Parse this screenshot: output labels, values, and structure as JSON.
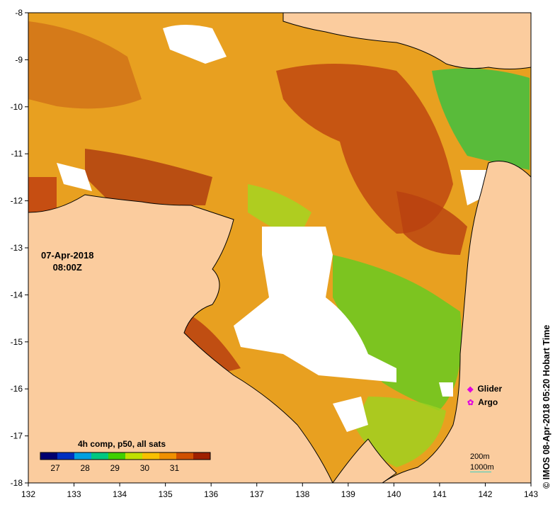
{
  "map": {
    "date": "07-Apr-2018",
    "time": "08:00Z",
    "lon_ticks": [
      "132",
      "133",
      "134",
      "135",
      "136",
      "137",
      "138",
      "139",
      "140",
      "141",
      "142",
      "143"
    ],
    "lat_ticks": [
      "-8",
      "-9",
      "-10",
      "-11",
      "-12",
      "-13",
      "-14",
      "-15",
      "-16",
      "-17",
      "-18"
    ],
    "colorbar": {
      "title": "4h comp, p50, all sats",
      "ticks": [
        "27",
        "28",
        "29",
        "30",
        "31"
      ],
      "colors": [
        "#000070",
        "#0030c0",
        "#00a0e0",
        "#00c880",
        "#40d000",
        "#c0e000",
        "#f8c000",
        "#f09000",
        "#d05000",
        "#a02000"
      ]
    },
    "legend": {
      "glider": "Glider",
      "argo": "Argo",
      "depth_200": "200m",
      "depth_1000": "1000m"
    },
    "credit": "© IMOS 08-Apr-2018 05:20 Hobart Time",
    "colors": {
      "land": "#fbcc9e",
      "warm": "#e89020",
      "hot": "#c04810",
      "mid": "#f0b020",
      "cool": "#60cc20",
      "cloud": "#ffffff"
    }
  }
}
